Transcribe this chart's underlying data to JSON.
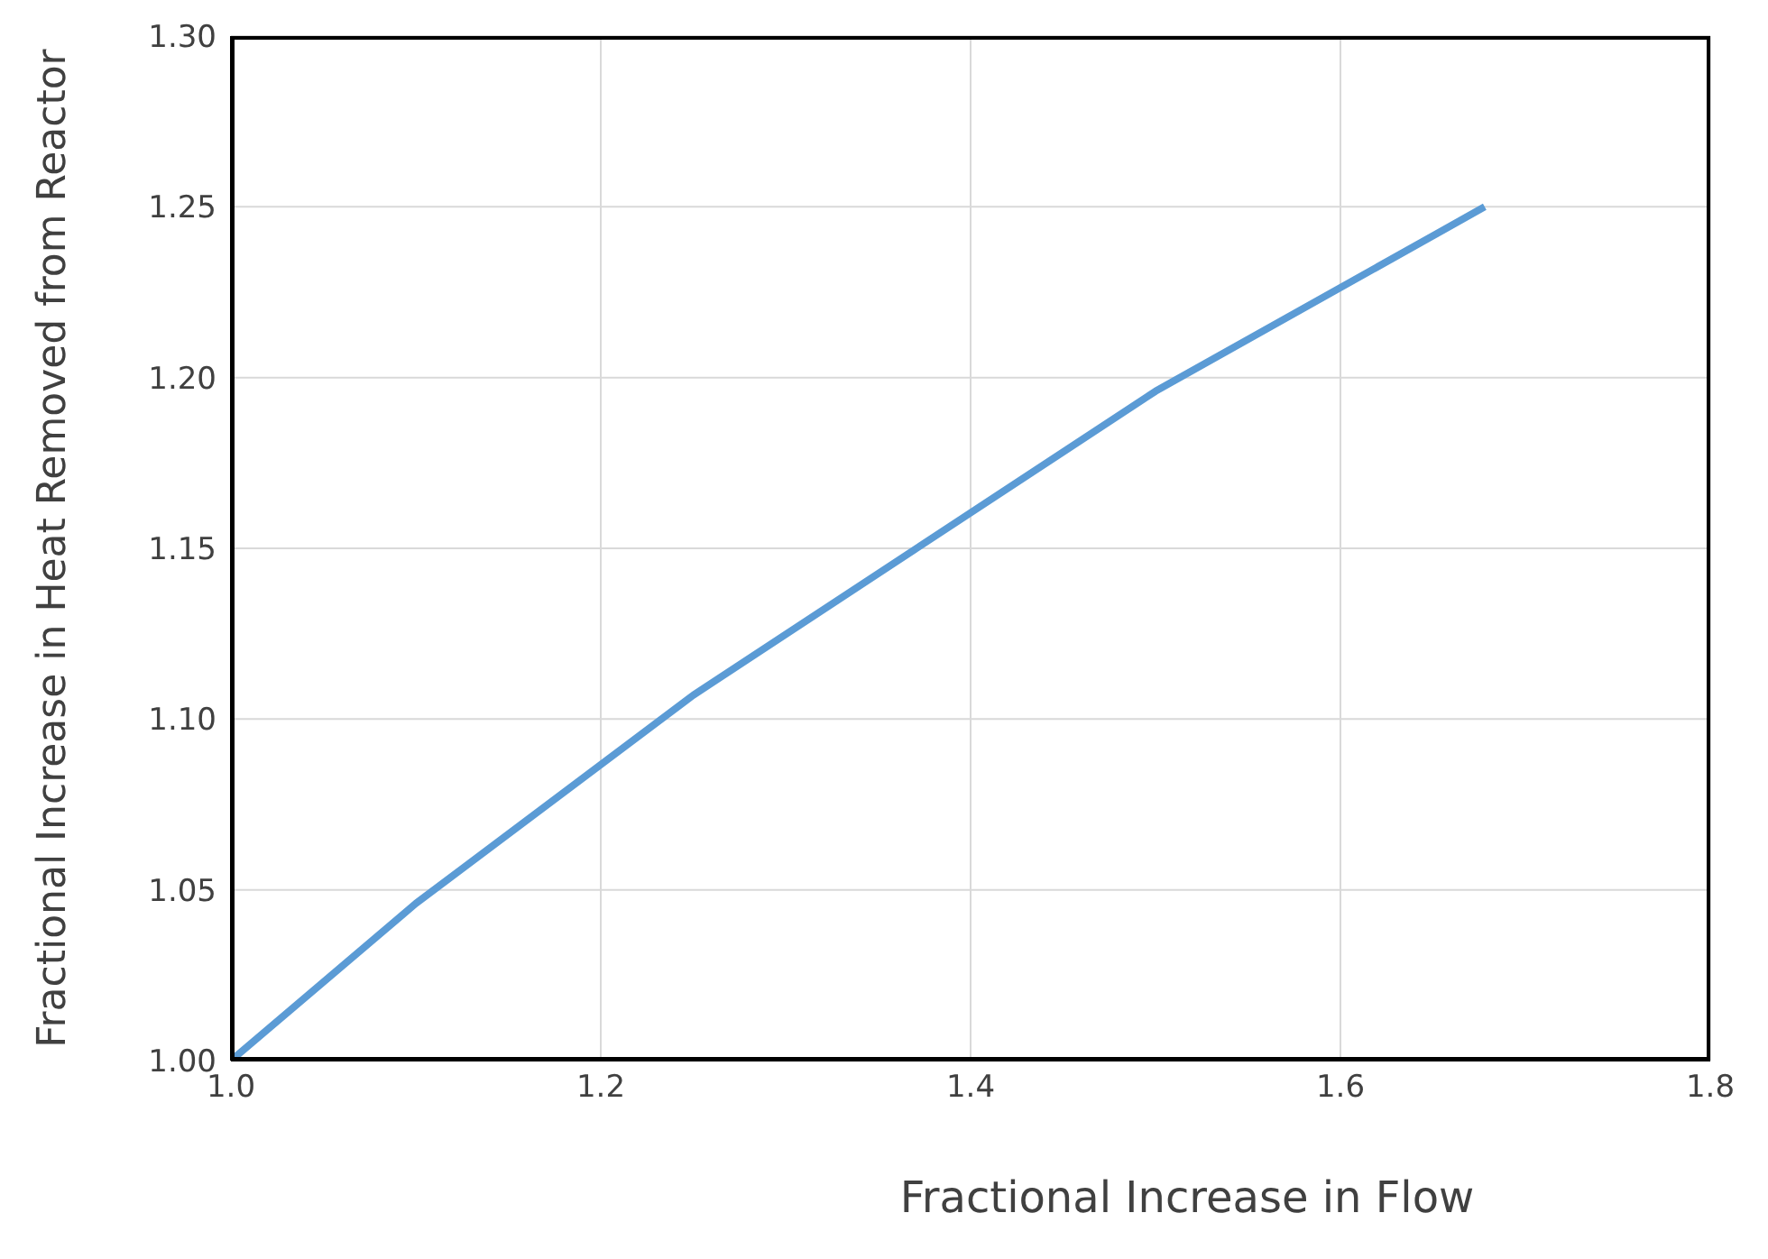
{
  "chart_data": {
    "type": "line",
    "xlabel": "Fractional Increase in Flow",
    "ylabel": "Fractional Increase in Heat Removed from Reactor",
    "x": [
      1.0,
      1.1,
      1.25,
      1.5,
      1.678
    ],
    "series": [
      {
        "color": "#5b9bd5",
        "values": [
          1.0,
          1.046,
          1.107,
          1.196,
          1.25
        ]
      }
    ],
    "xlim": [
      1.0,
      1.8
    ],
    "xticks": [
      {
        "value": 1.0,
        "label": "1.0"
      },
      {
        "value": 1.2,
        "label": "1.2"
      },
      {
        "value": 1.4,
        "label": "1.4"
      },
      {
        "value": 1.6,
        "label": "1.6"
      },
      {
        "value": 1.8,
        "label": "1.8"
      }
    ],
    "ylim": [
      1.0,
      1.3
    ],
    "yticks": [
      {
        "value": 1.0,
        "label": "1.00"
      },
      {
        "value": 1.05,
        "label": "1.05"
      },
      {
        "value": 1.1,
        "label": "1.10"
      },
      {
        "value": 1.15,
        "label": "1.15"
      },
      {
        "value": 1.2,
        "label": "1.20"
      },
      {
        "value": 1.25,
        "label": "1.25"
      },
      {
        "value": 1.3,
        "label": "1.30"
      }
    ],
    "grid": true,
    "marker": "none",
    "line_style": "solid"
  }
}
